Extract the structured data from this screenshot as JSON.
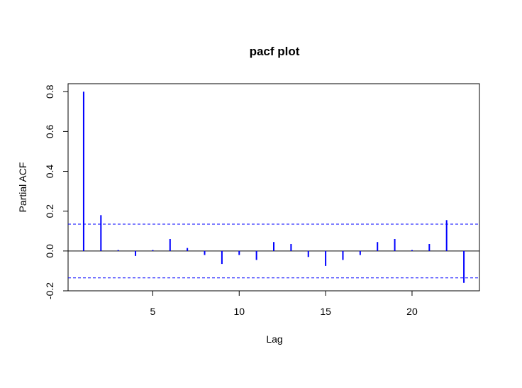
{
  "chart_data": {
    "type": "bar",
    "title": "pacf plot",
    "xlabel": "Lag",
    "ylabel": "Partial ACF",
    "xlim": [
      0.1,
      23.9
    ],
    "ylim": [
      -0.2,
      0.84
    ],
    "x_ticks": [
      "5",
      "10",
      "15",
      "20"
    ],
    "y_ticks": [
      "-0.2",
      "0.0",
      "0.2",
      "0.4",
      "0.6",
      "0.8"
    ],
    "confidence_bound": 0.135,
    "colors": {
      "bars": "#0000ff",
      "bounds": "#0000ff",
      "axis": "#000000"
    },
    "series": [
      {
        "x": [
          1,
          2,
          3,
          4,
          5,
          6,
          7,
          8,
          9,
          10,
          11,
          12,
          13,
          14,
          15,
          16,
          17,
          18,
          19,
          20,
          21,
          22,
          23
        ],
        "values": [
          0.8,
          0.18,
          0.005,
          -0.025,
          0.005,
          0.06,
          0.015,
          -0.02,
          -0.065,
          -0.02,
          -0.045,
          0.045,
          0.035,
          -0.03,
          -0.075,
          -0.045,
          -0.02,
          0.045,
          0.06,
          0.005,
          0.035,
          0.155,
          -0.16
        ]
      }
    ]
  }
}
